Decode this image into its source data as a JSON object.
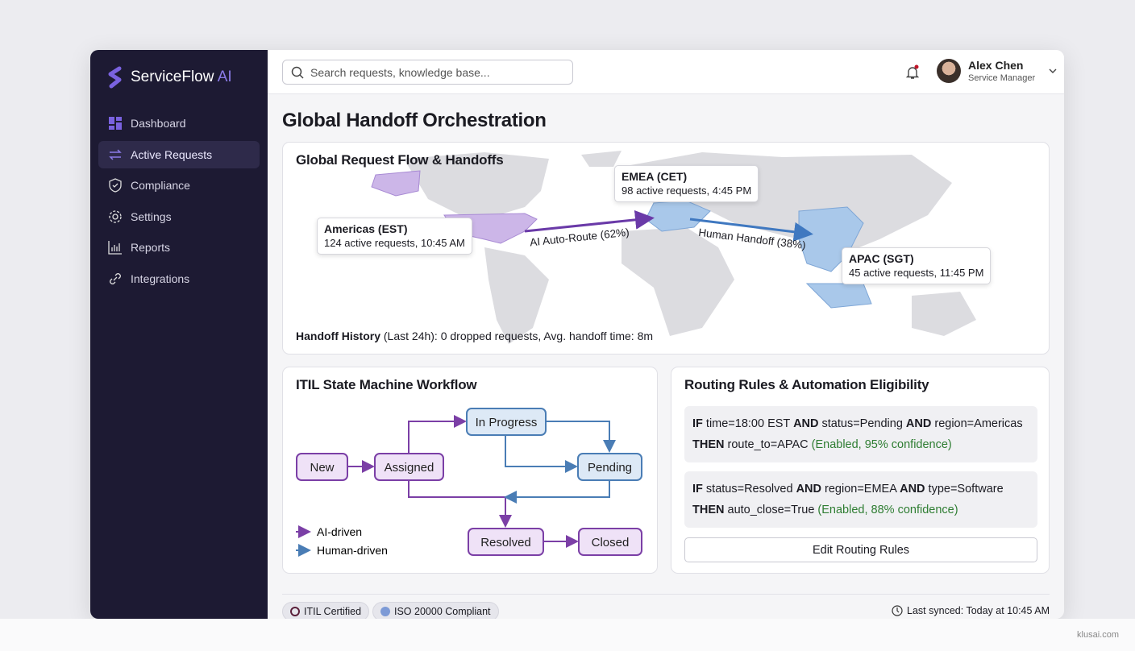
{
  "app": {
    "brand": "ServiceFlow",
    "brand_suffix": "AI",
    "accent": "#6c4fd8"
  },
  "sidebar": {
    "items": [
      {
        "label": "Dashboard",
        "icon": "dashboard-icon"
      },
      {
        "label": "Active Requests",
        "icon": "arrows-exchange-icon",
        "active": true
      },
      {
        "label": "Compliance",
        "icon": "shield-check-icon"
      },
      {
        "label": "Settings",
        "icon": "gear-icon"
      },
      {
        "label": "Reports",
        "icon": "bar-chart-icon"
      },
      {
        "label": "Integrations",
        "icon": "link-icon"
      }
    ]
  },
  "header": {
    "search_placeholder": "Search requests, knowledge base...",
    "user_name": "Alex Chen",
    "user_role": "Service Manager",
    "notification": true
  },
  "page_title": "Global Handoff Orchestration",
  "map": {
    "title": "Global Request Flow & Handoffs",
    "regions": [
      {
        "name": "Americas (EST)",
        "detail": "124 active requests, 10:45 AM"
      },
      {
        "name": "EMEA (CET)",
        "detail": "98 active requests, 4:45 PM"
      },
      {
        "name": "APAC (SGT)",
        "detail": "45 active requests, 11:45 PM"
      }
    ],
    "flows": [
      {
        "label": "AI Auto-Route (62%)",
        "color": "#6a3aa8"
      },
      {
        "label": "Human Handoff (38%)",
        "color": "#3f78c0"
      }
    ],
    "history_label": "Handoff History",
    "history_text": " (Last 24h): 0 dropped requests, Avg. handoff time: 8m"
  },
  "workflow": {
    "title": "ITIL State Machine Workflow",
    "states": [
      "New",
      "Assigned",
      "In Progress",
      "Pending",
      "Resolved",
      "Closed"
    ],
    "legend": [
      "AI-driven",
      "Human-driven"
    ],
    "colors": {
      "ai": "#7b3fa6",
      "human": "#4a7db5"
    }
  },
  "rules": {
    "title": "Routing Rules & Automation Eligibility",
    "items": [
      {
        "cond": [
          [
            "IF",
            true
          ],
          [
            " time=18:00 EST ",
            false
          ],
          [
            "AND",
            true
          ],
          [
            " status=Pending ",
            false
          ],
          [
            "AND",
            true
          ],
          [
            " region=Americas",
            false
          ]
        ],
        "then": [
          [
            "THEN",
            true
          ],
          [
            " route_to=APAC ",
            false
          ]
        ],
        "status": "(Enabled, 95% confidence)"
      },
      {
        "cond": [
          [
            "IF",
            true
          ],
          [
            " status=Resolved ",
            false
          ],
          [
            "AND",
            true
          ],
          [
            " region=EMEA ",
            false
          ],
          [
            "AND",
            true
          ],
          [
            " type=Software",
            false
          ]
        ],
        "then": [
          [
            "THEN",
            true
          ],
          [
            " auto_close=True ",
            false
          ]
        ],
        "status": "(Enabled, 88% confidence)"
      }
    ],
    "edit_button": "Edit Routing Rules"
  },
  "footer": {
    "badges": [
      "ITIL Certified",
      "ISO 20000 Compliant"
    ],
    "sync": "Last synced: Today at 10:45 AM"
  },
  "watermark": "klusai.com"
}
